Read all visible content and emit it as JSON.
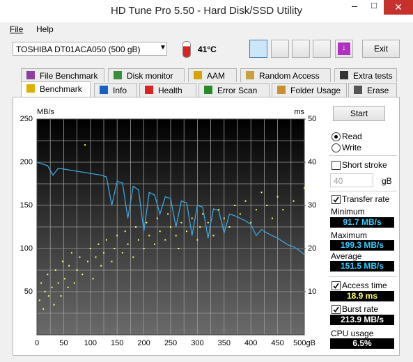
{
  "window": {
    "title": "HD Tune Pro 5.50 - Hard Disk/SSD Utility",
    "menu": [
      "File",
      "Help"
    ]
  },
  "toolbar": {
    "drive": "TOSHIBA DT01ACA050 (500 gB)",
    "temperature": "41°C",
    "exit": "Exit"
  },
  "tabs": {
    "row1": [
      "File Benchmark",
      "Disk monitor",
      "AAM",
      "Random Access",
      "Extra tests"
    ],
    "row2": [
      "Benchmark",
      "Info",
      "Health",
      "Error Scan",
      "Folder Usage",
      "Erase"
    ]
  },
  "chart_data": {
    "type": "combo",
    "y_label": "MB/s",
    "y2_label": "ms",
    "xlim": [
      0,
      500
    ],
    "ylim": [
      0,
      250
    ],
    "y2lim": [
      0,
      50
    ],
    "xticks": [
      0,
      50,
      100,
      150,
      200,
      250,
      300,
      350,
      400,
      450,
      {
        "value": 500,
        "label": "500gB"
      }
    ],
    "yticks": [
      50,
      100,
      150,
      200,
      250
    ],
    "y2ticks": [
      10,
      20,
      30,
      40,
      50
    ],
    "grid": true,
    "series": [
      {
        "name": "Transfer rate",
        "type": "line",
        "color": "#3aa6e0",
        "x": [
          0,
          10,
          20,
          30,
          40,
          50,
          60,
          70,
          80,
          90,
          100,
          110,
          120,
          130,
          140,
          150,
          160,
          170,
          180,
          190,
          200,
          210,
          220,
          230,
          240,
          250,
          260,
          270,
          280,
          290,
          300,
          310,
          320,
          330,
          340,
          350,
          360,
          370,
          380,
          390,
          400,
          410,
          420,
          430,
          440,
          450,
          460,
          470,
          480,
          490,
          500
        ],
        "values": [
          200,
          198,
          196,
          185,
          193,
          192,
          191,
          190,
          189,
          188,
          187,
          186,
          185,
          183,
          150,
          178,
          176,
          135,
          172,
          168,
          120,
          165,
          162,
          140,
          160,
          158,
          125,
          155,
          153,
          115,
          150,
          148,
          112,
          146,
          144,
          118,
          140,
          138,
          135,
          132,
          128,
          115,
          122,
          118,
          115,
          112,
          108,
          104,
          102,
          98,
          93
        ]
      },
      {
        "name": "Access time",
        "type": "scatter",
        "axis": "y2",
        "color": "#ffff66",
        "x": [
          5,
          8,
          12,
          15,
          20,
          22,
          28,
          32,
          35,
          40,
          45,
          48,
          52,
          58,
          60,
          65,
          70,
          75,
          80,
          85,
          90,
          95,
          100,
          105,
          110,
          115,
          120,
          125,
          130,
          140,
          145,
          150,
          160,
          165,
          170,
          180,
          185,
          190,
          200,
          205,
          210,
          220,
          225,
          230,
          240,
          245,
          250,
          260,
          265,
          270,
          280,
          290,
          300,
          305,
          310,
          320,
          330,
          340,
          350,
          360,
          370,
          380,
          390,
          400,
          410,
          420,
          430,
          440,
          450,
          460,
          480,
          500
        ],
        "values": [
          8,
          12,
          6,
          10,
          14,
          9,
          11,
          7,
          15,
          12,
          9,
          17,
          13,
          11,
          16,
          19,
          12,
          15,
          18,
          14,
          44,
          17,
          20,
          13,
          18,
          21,
          16,
          19,
          22,
          17,
          20,
          23,
          19,
          24,
          21,
          18,
          25,
          22,
          20,
          26,
          23,
          21,
          27,
          24,
          22,
          28,
          25,
          23,
          20,
          26,
          24,
          27,
          22,
          25,
          28,
          26,
          23,
          29,
          27,
          25,
          30,
          28,
          31,
          26,
          29,
          33,
          30,
          27,
          32,
          29,
          31,
          34
        ]
      }
    ]
  },
  "panel": {
    "start": "Start",
    "read": "Read",
    "write": "Write",
    "short_stroke": "Short stroke",
    "stroke_value": "40",
    "stroke_unit": "gB",
    "minimum_label": "Minimum",
    "minimum": "91.7 MB/s",
    "maximum_label": "Maximum",
    "maximum": "199.3 MB/s",
    "average_label": "Average",
    "average": "151.5 MB/s",
    "access_time": "18.9 ms",
    "burst_label": "Burst rate",
    "burst": "213.9 MB/s",
    "cpu_label": "CPU usage",
    "cpu": "6.5%"
  }
}
